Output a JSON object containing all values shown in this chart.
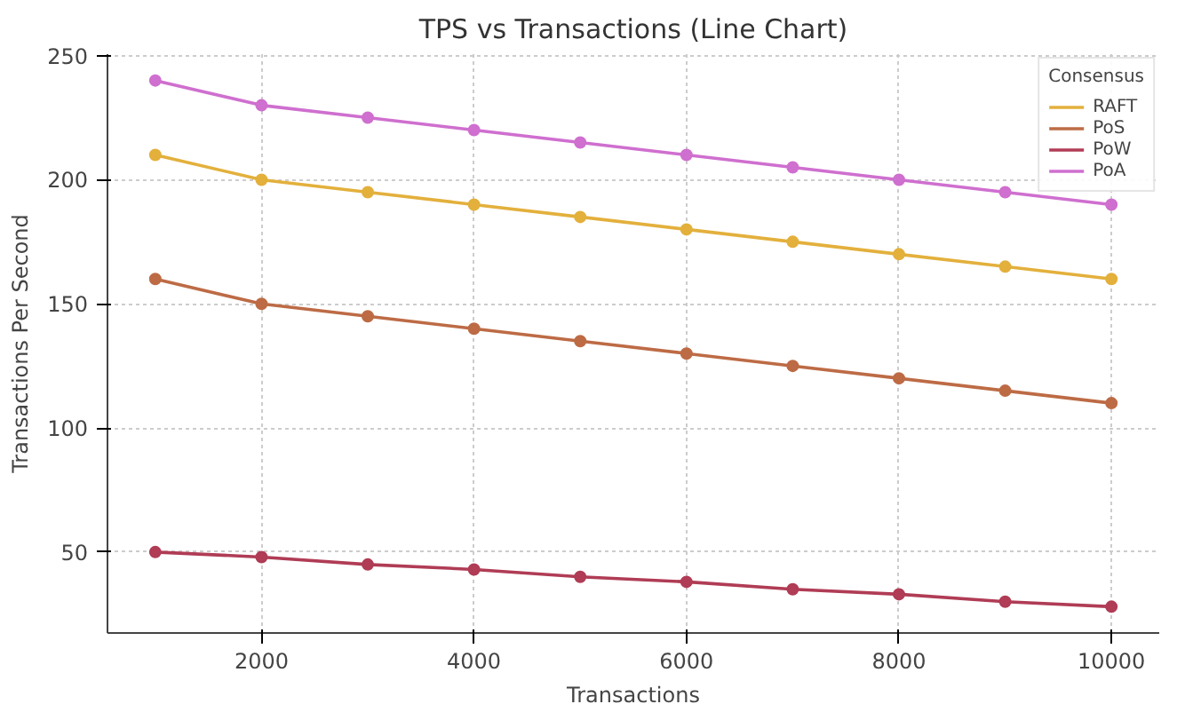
{
  "chart_data": {
    "type": "line",
    "title": "TPS vs Transactions (Line Chart)",
    "xlabel": "Transactions",
    "ylabel": "Transactions Per Second",
    "legend_title": "Consensus",
    "x": [
      1000,
      2000,
      3000,
      4000,
      5000,
      6000,
      7000,
      8000,
      9000,
      10000
    ],
    "series": [
      {
        "name": "RAFT",
        "color": "#e3b03c",
        "values": [
          210,
          200,
          195,
          190,
          185,
          180,
          175,
          170,
          165,
          160
        ]
      },
      {
        "name": "PoS",
        "color": "#bd6b45",
        "values": [
          160,
          150,
          145,
          140,
          135,
          130,
          125,
          120,
          115,
          110
        ]
      },
      {
        "name": "PoW",
        "color": "#b03c55",
        "values": [
          50,
          48,
          45,
          43,
          40,
          38,
          35,
          33,
          30,
          28
        ]
      },
      {
        "name": "PoA",
        "color": "#cf6fcf",
        "values": [
          240,
          230,
          225,
          220,
          215,
          210,
          205,
          200,
          195,
          190
        ]
      }
    ],
    "xlim": [
      550,
      10450
    ],
    "ylim": [
      17.4,
      250.6
    ],
    "xticks": [
      2000,
      4000,
      6000,
      8000,
      10000
    ],
    "yticks": [
      50,
      100,
      150,
      200,
      250
    ],
    "grid": true,
    "legend": "top right",
    "marker": "circle",
    "line_style": "solid"
  }
}
